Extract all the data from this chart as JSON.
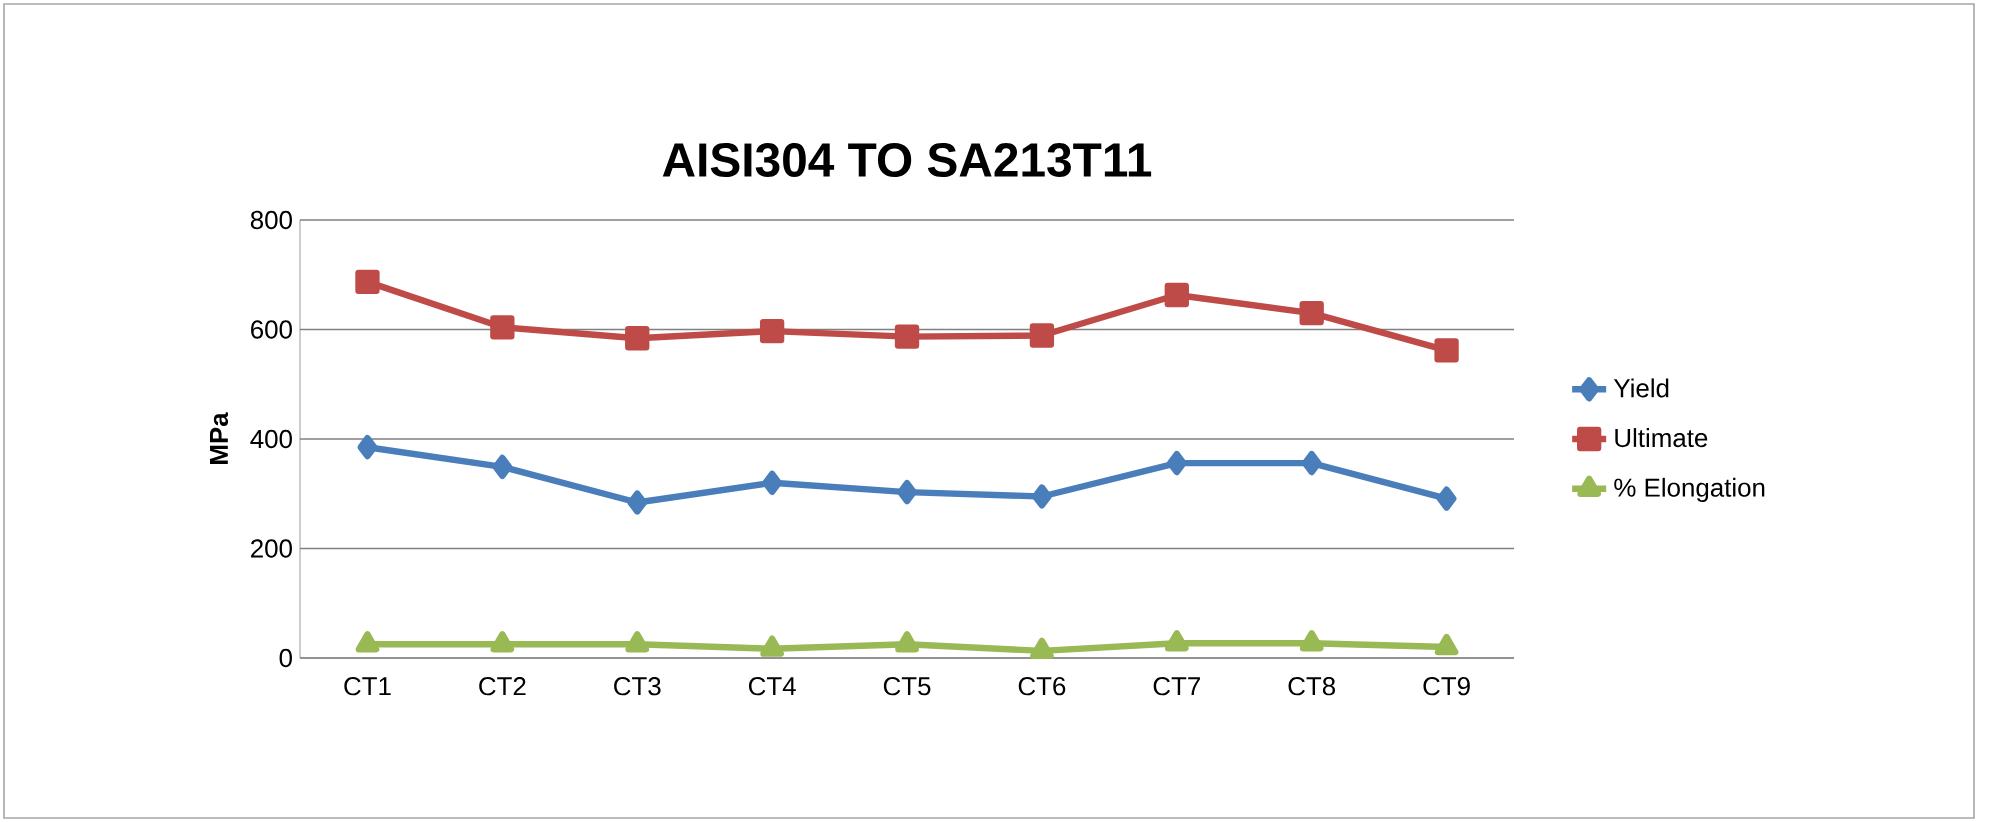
{
  "chart_data": {
    "type": "line",
    "title": "AISI304 TO SA213T11",
    "ylabel": "MPa",
    "categories": [
      "CT1",
      "CT2",
      "CT3",
      "CT4",
      "CT5",
      "CT6",
      "CT7",
      "CT8",
      "CT9"
    ],
    "series": [
      {
        "name": "Yield",
        "color": "#4a7ebb",
        "marker": "diamond",
        "values": [
          385,
          349,
          284,
          320,
          303,
          295,
          356,
          356,
          291
        ]
      },
      {
        "name": "Ultimate",
        "color": "#be4b48",
        "marker": "square",
        "values": [
          687,
          604,
          584,
          597,
          587,
          589,
          663,
          630,
          562
        ]
      },
      {
        "name": "% Elongation",
        "color": "#98b954",
        "marker": "triangle",
        "values": [
          25,
          25,
          25,
          17,
          25,
          13,
          27,
          27,
          20
        ]
      }
    ],
    "ylim": [
      0,
      800
    ],
    "yticks": [
      0,
      200,
      400,
      600,
      800
    ],
    "grid": "y",
    "legend": "right"
  }
}
